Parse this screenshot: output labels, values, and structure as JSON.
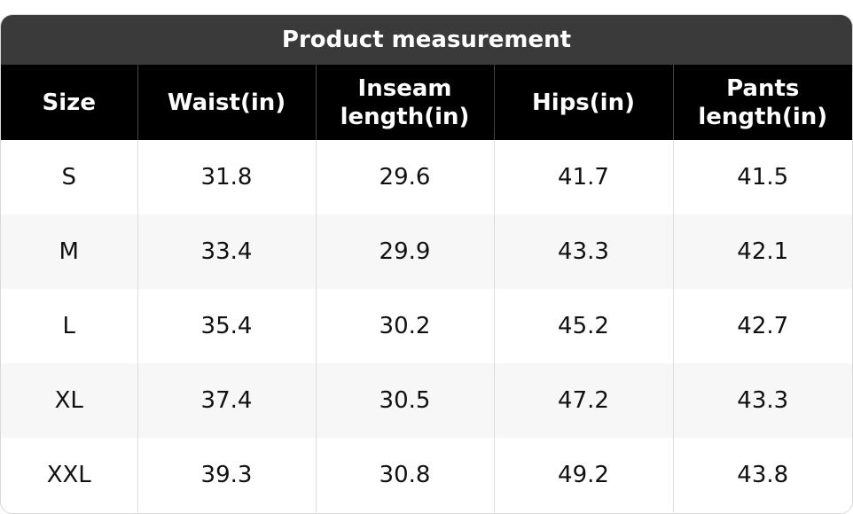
{
  "title": "Product measurement",
  "table": {
    "headers": [
      "Size",
      "Waist(in)",
      "Inseam length(in)",
      "Hips(in)",
      "Pants length(in)"
    ],
    "rows": [
      [
        "S",
        "31.8",
        "29.6",
        "41.7",
        "41.5"
      ],
      [
        "M",
        "33.4",
        "29.9",
        "43.3",
        "42.1"
      ],
      [
        "L",
        "35.4",
        "30.2",
        "45.2",
        "42.7"
      ],
      [
        "XL",
        "37.4",
        "30.5",
        "47.2",
        "43.3"
      ],
      [
        "XXL",
        "39.3",
        "30.8",
        "49.2",
        "43.8"
      ]
    ]
  }
}
